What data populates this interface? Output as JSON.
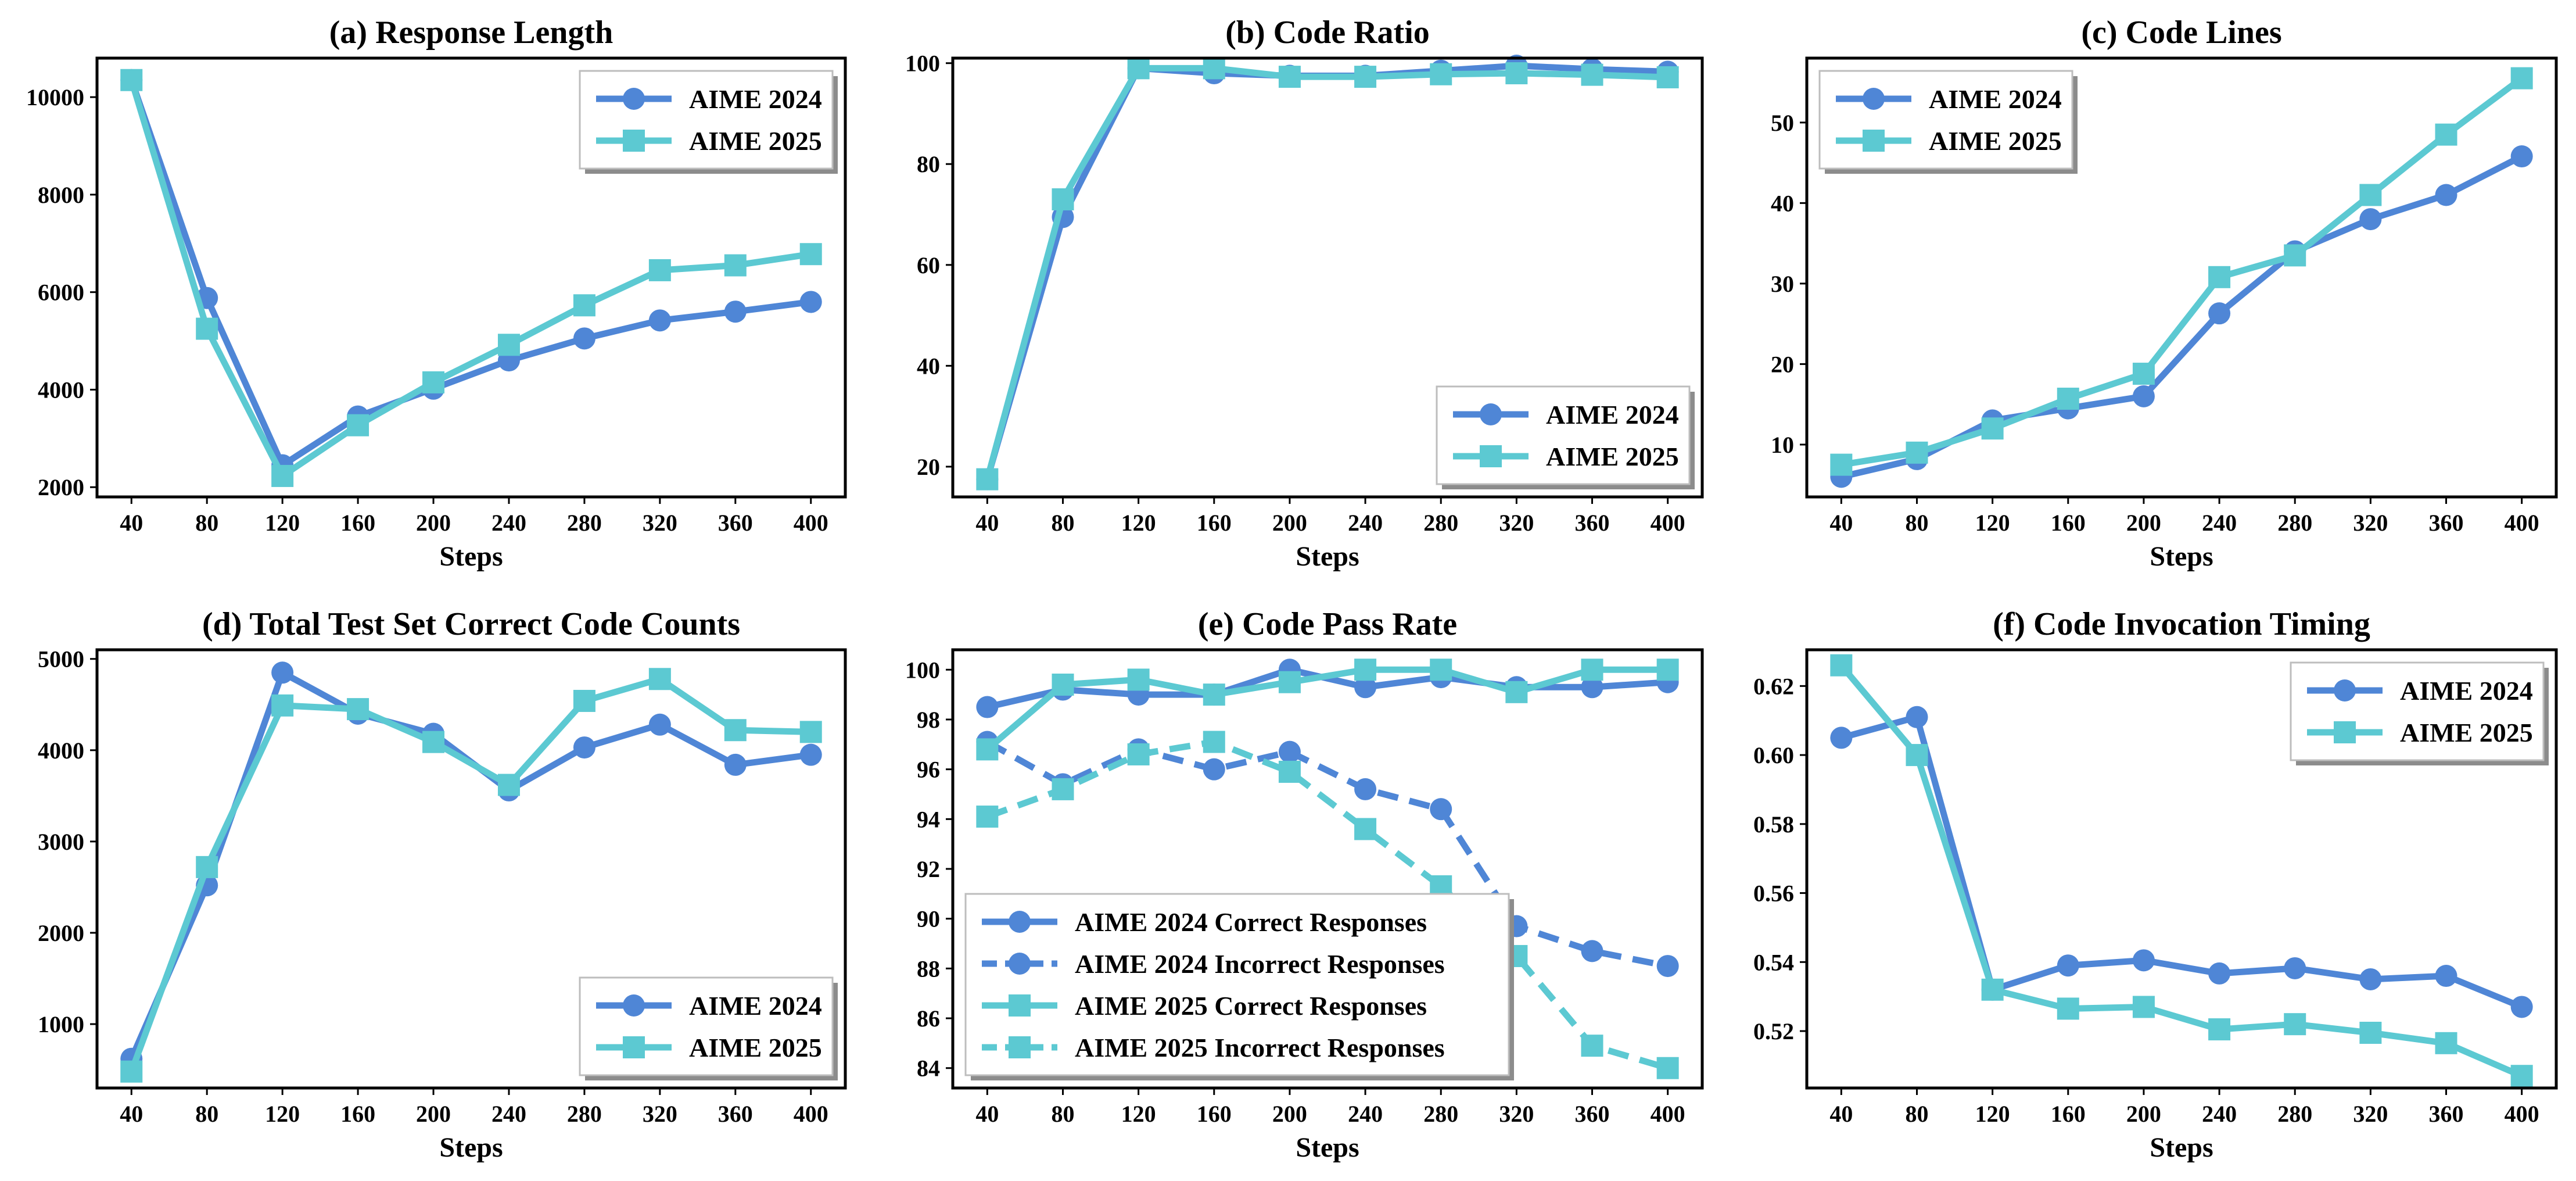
{
  "chart_data": [
    {
      "type": "line",
      "title": "(a) Response Length",
      "xlabel": "Steps",
      "ylabel": "",
      "x": [
        40,
        80,
        120,
        160,
        200,
        240,
        280,
        320,
        360,
        400
      ],
      "xticks": [
        "40",
        "80",
        "120",
        "160",
        "200",
        "240",
        "280",
        "320",
        "360",
        "400"
      ],
      "ylim": [
        1800,
        10800
      ],
      "yticks": [
        2000,
        4000,
        6000,
        8000,
        10000
      ],
      "ytick_labels": [
        "2000",
        "4000",
        "6000",
        "8000",
        "10000"
      ],
      "legend_position": "top-right",
      "series": [
        {
          "name": "AIME 2024",
          "color": "#4f86d6",
          "marker": "circle",
          "linestyle": "solid",
          "values": [
            10350,
            5880,
            2450,
            3450,
            4020,
            4600,
            5050,
            5420,
            5600,
            5800
          ]
        },
        {
          "name": "AIME 2025",
          "color": "#5cc9d2",
          "marker": "square",
          "linestyle": "solid",
          "values": [
            10350,
            5250,
            2230,
            3270,
            4150,
            4920,
            5730,
            6450,
            6550,
            6780
          ]
        }
      ]
    },
    {
      "type": "line",
      "title": "(b) Code Ratio",
      "xlabel": "Steps",
      "ylabel": "",
      "x": [
        40,
        80,
        120,
        160,
        200,
        240,
        280,
        320,
        360,
        400
      ],
      "xticks": [
        "40",
        "80",
        "120",
        "160",
        "200",
        "240",
        "280",
        "320",
        "360",
        "400"
      ],
      "ylim": [
        14,
        101
      ],
      "yticks": [
        20,
        40,
        60,
        80,
        100
      ],
      "ytick_labels": [
        "20",
        "40",
        "60",
        "80",
        "100"
      ],
      "legend_position": "bottom-right",
      "series": [
        {
          "name": "AIME 2024",
          "color": "#4f86d6",
          "marker": "circle",
          "linestyle": "solid",
          "values": [
            17.5,
            69.5,
            99,
            98,
            97.5,
            97.5,
            98.5,
            99.5,
            98.8,
            98.3
          ]
        },
        {
          "name": "AIME 2025",
          "color": "#5cc9d2",
          "marker": "square",
          "linestyle": "solid",
          "values": [
            17.5,
            73,
            99,
            99,
            97.3,
            97.3,
            97.8,
            98,
            97.7,
            97.2
          ]
        }
      ]
    },
    {
      "type": "line",
      "title": "(c) Code Lines",
      "xlabel": "Steps",
      "ylabel": "",
      "x": [
        40,
        80,
        120,
        160,
        200,
        240,
        280,
        320,
        360,
        400
      ],
      "xticks": [
        "40",
        "80",
        "120",
        "160",
        "200",
        "240",
        "280",
        "320",
        "360",
        "400"
      ],
      "ylim": [
        3.5,
        58
      ],
      "yticks": [
        10,
        20,
        30,
        40,
        50
      ],
      "ytick_labels": [
        "10",
        "20",
        "30",
        "40",
        "50"
      ],
      "legend_position": "top-left",
      "series": [
        {
          "name": "AIME 2024",
          "color": "#4f86d6",
          "marker": "circle",
          "linestyle": "solid",
          "values": [
            6,
            8.2,
            13,
            14.5,
            16,
            26.3,
            34,
            38,
            41,
            45.8
          ]
        },
        {
          "name": "AIME 2025",
          "color": "#5cc9d2",
          "marker": "square",
          "linestyle": "solid",
          "values": [
            7.5,
            9,
            12,
            15.7,
            18.8,
            30.8,
            33.5,
            41,
            48.5,
            55.5
          ]
        }
      ]
    },
    {
      "type": "line",
      "title": "(d) Total Test Set Correct Code Counts",
      "xlabel": "Steps",
      "ylabel": "",
      "x": [
        40,
        80,
        120,
        160,
        200,
        240,
        280,
        320,
        360,
        400
      ],
      "xticks": [
        "40",
        "80",
        "120",
        "160",
        "200",
        "240",
        "280",
        "320",
        "360",
        "400"
      ],
      "ylim": [
        300,
        5100
      ],
      "yticks": [
        1000,
        2000,
        3000,
        4000,
        5000
      ],
      "ytick_labels": [
        "1000",
        "2000",
        "3000",
        "4000",
        "5000"
      ],
      "legend_position": "bottom-right",
      "series": [
        {
          "name": "AIME 2024",
          "color": "#4f86d6",
          "marker": "circle",
          "linestyle": "solid",
          "values": [
            620,
            2520,
            4850,
            4400,
            4180,
            3560,
            4030,
            4280,
            3840,
            3950
          ]
        },
        {
          "name": "AIME 2025",
          "color": "#5cc9d2",
          "marker": "square",
          "linestyle": "solid",
          "values": [
            480,
            2720,
            4490,
            4450,
            4090,
            3620,
            4540,
            4780,
            4220,
            4200
          ]
        }
      ]
    },
    {
      "type": "line",
      "title": "(e) Code Pass Rate",
      "xlabel": "Steps",
      "ylabel": "",
      "x": [
        40,
        80,
        120,
        160,
        200,
        240,
        280,
        320,
        360,
        400
      ],
      "xticks": [
        "40",
        "80",
        "120",
        "160",
        "200",
        "240",
        "280",
        "320",
        "360",
        "400"
      ],
      "ylim": [
        83.2,
        100.8
      ],
      "yticks": [
        84,
        86,
        88,
        90,
        92,
        94,
        96,
        98,
        100
      ],
      "ytick_labels": [
        "84",
        "86",
        "88",
        "90",
        "92",
        "94",
        "96",
        "98",
        "100"
      ],
      "legend_position": "bottom-left",
      "series": [
        {
          "name": "AIME 2024 Correct Responses",
          "color": "#4f86d6",
          "marker": "circle",
          "linestyle": "solid",
          "values": [
            98.5,
            99.2,
            99.0,
            99.0,
            100.0,
            99.3,
            99.7,
            99.3,
            99.3,
            99.5
          ]
        },
        {
          "name": "AIME 2024 Incorrect Responses",
          "color": "#4f86d6",
          "marker": "circle",
          "linestyle": "dashed",
          "values": [
            97.1,
            95.4,
            96.8,
            96.0,
            96.7,
            95.2,
            94.4,
            89.7,
            88.7,
            88.1
          ]
        },
        {
          "name": "AIME 2025 Correct Responses",
          "color": "#5cc9d2",
          "marker": "square",
          "linestyle": "solid",
          "values": [
            96.8,
            99.4,
            99.6,
            99.0,
            99.5,
            100.0,
            100.0,
            99.1,
            100.0,
            100.0
          ]
        },
        {
          "name": "AIME 2025 Incorrect Responses",
          "color": "#5cc9d2",
          "marker": "square",
          "linestyle": "dashed",
          "values": [
            94.1,
            95.2,
            96.6,
            97.1,
            95.9,
            93.6,
            91.3,
            88.5,
            84.9,
            84.0
          ]
        }
      ]
    },
    {
      "type": "line",
      "title": "(f) Code Invocation Timing",
      "xlabel": "Steps",
      "ylabel": "",
      "x": [
        40,
        80,
        120,
        160,
        200,
        240,
        280,
        320,
        360,
        400
      ],
      "xticks": [
        "40",
        "80",
        "120",
        "160",
        "200",
        "240",
        "280",
        "320",
        "360",
        "400"
      ],
      "ylim": [
        0.5035,
        0.6305
      ],
      "yticks": [
        0.52,
        0.54,
        0.56,
        0.58,
        0.6,
        0.62
      ],
      "ytick_labels": [
        "0.52",
        "0.54",
        "0.56",
        "0.58",
        "0.60",
        "0.62"
      ],
      "legend_position": "top-right",
      "series": [
        {
          "name": "AIME 2024",
          "color": "#4f86d6",
          "marker": "circle",
          "linestyle": "solid",
          "values": [
            0.605,
            0.611,
            0.532,
            0.539,
            0.5405,
            0.5367,
            0.5382,
            0.535,
            0.536,
            0.527
          ]
        },
        {
          "name": "AIME 2025",
          "color": "#5cc9d2",
          "marker": "square",
          "linestyle": "solid",
          "values": [
            0.626,
            0.6,
            0.532,
            0.5265,
            0.527,
            0.5205,
            0.522,
            0.5195,
            0.5165,
            0.507
          ]
        }
      ]
    }
  ]
}
